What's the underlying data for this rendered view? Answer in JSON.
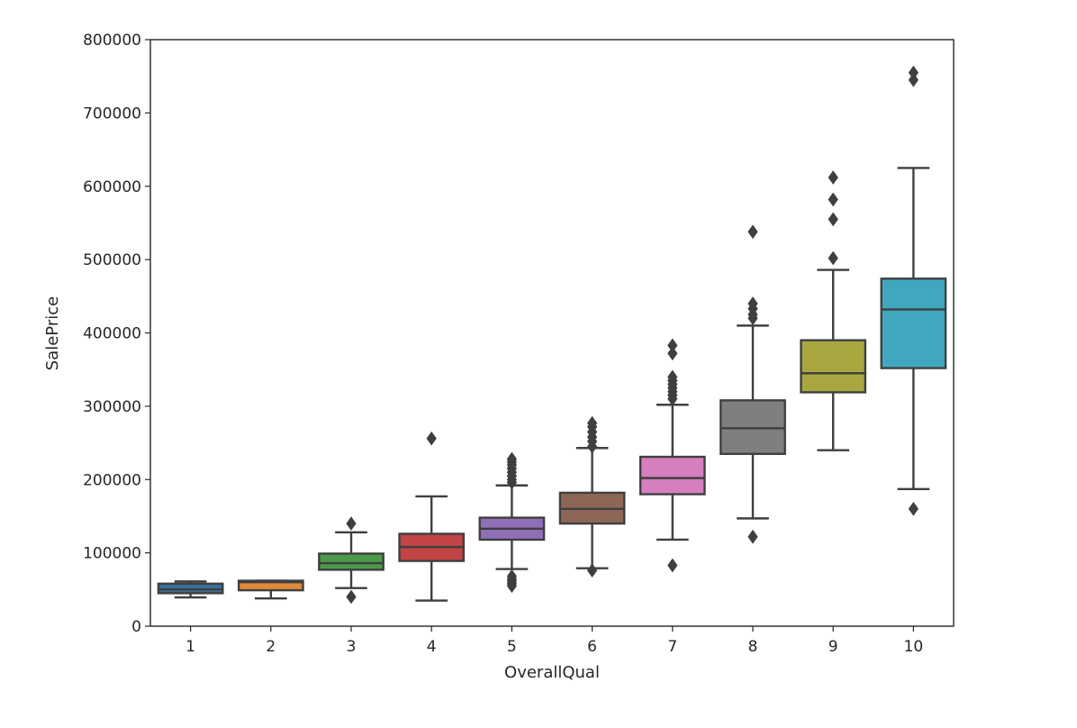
{
  "chart_data": {
    "type": "box",
    "xlabel": "OverallQual",
    "ylabel": "SalePrice",
    "title": "",
    "ylim": [
      0,
      800000
    ],
    "yticks": [
      0,
      100000,
      200000,
      300000,
      400000,
      500000,
      600000,
      700000,
      800000
    ],
    "ytick_labels": [
      "0",
      "100000",
      "200000",
      "300000",
      "400000",
      "500000",
      "600000",
      "700000",
      "800000"
    ],
    "grid": false,
    "legend": "none",
    "boxes": [
      {
        "category": "1",
        "color": "#3a6e99",
        "whisker_low": 39300,
        "q1": 45000,
        "median": 50150,
        "q3": 58000,
        "whisker_high": 61000,
        "outliers": []
      },
      {
        "category": "2",
        "color": "#dd8a3a",
        "whisker_low": 37900,
        "q1": 49000,
        "median": 60000,
        "q3": 62000,
        "whisker_high": 62000,
        "outliers": []
      },
      {
        "category": "3",
        "color": "#4a9a4a",
        "whisker_low": 52000,
        "q1": 77000,
        "median": 86000,
        "q3": 99000,
        "whisker_high": 128000,
        "outliers": [
          40000,
          140000
        ]
      },
      {
        "category": "4",
        "color": "#c24444",
        "whisker_low": 34900,
        "q1": 89000,
        "median": 108000,
        "q3": 126000,
        "whisker_high": 177000,
        "outliers": [
          256000
        ]
      },
      {
        "category": "5",
        "color": "#8f6fb8",
        "whisker_low": 78000,
        "q1": 118000,
        "median": 133000,
        "q3": 148000,
        "whisker_high": 192000,
        "outliers": [
          55000,
          58000,
          61000,
          64000,
          68000,
          196000,
          200000,
          205000,
          210000,
          215000,
          220000,
          224000,
          228000
        ]
      },
      {
        "category": "6",
        "color": "#8d6656",
        "whisker_low": 79000,
        "q1": 140000,
        "median": 160000,
        "q3": 182000,
        "whisker_high": 243000,
        "outliers": [
          76000,
          245000,
          252000,
          258000,
          265000,
          272000,
          277000
        ]
      },
      {
        "category": "7",
        "color": "#d67fbf",
        "whisker_low": 118000,
        "q1": 180000,
        "median": 202000,
        "q3": 231000,
        "whisker_high": 302000,
        "outliers": [
          83000,
          310000,
          315000,
          320000,
          325000,
          330000,
          335000,
          340000,
          372000,
          383000
        ]
      },
      {
        "category": "8",
        "color": "#7f7f7f",
        "whisker_low": 147000,
        "q1": 235000,
        "median": 270000,
        "q3": 308000,
        "whisker_high": 410000,
        "outliers": [
          122000,
          420000,
          425000,
          433000,
          440000,
          538000
        ]
      },
      {
        "category": "9",
        "color": "#a9a840",
        "whisker_low": 240000,
        "q1": 319000,
        "median": 345000,
        "q3": 390000,
        "whisker_high": 486000,
        "outliers": [
          502000,
          555000,
          582000,
          612000
        ]
      },
      {
        "category": "10",
        "color": "#3fa8bf",
        "whisker_low": 187000,
        "q1": 352000,
        "median": 432000,
        "q3": 474000,
        "whisker_high": 625000,
        "outliers": [
          160000,
          745000,
          755000
        ]
      }
    ]
  }
}
